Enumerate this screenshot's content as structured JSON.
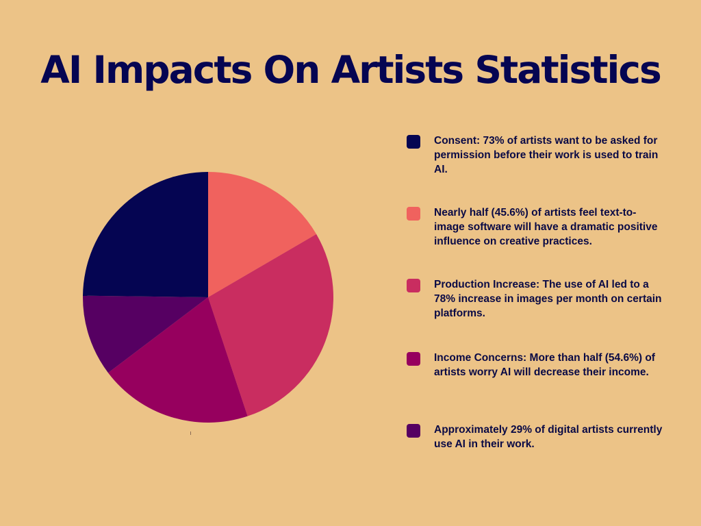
{
  "title": "AI Impacts On Artists Statistics",
  "chart_data": {
    "type": "pie",
    "title": "AI Impacts On Artists Statistics",
    "start_angle_deg": 0,
    "direction": "clockwise",
    "slices": [
      {
        "color": "#f0625e",
        "value": 16.6
      },
      {
        "color": "#c92d60",
        "value": 28.3
      },
      {
        "color": "#96005e",
        "value": 19.8
      },
      {
        "color": "#560062",
        "value": 10.5
      },
      {
        "color": "#050552",
        "value": 24.8
      }
    ],
    "legend": [
      {
        "color": "#050552",
        "text": "Consent: 73% of artists want to be asked for permission before their work is used to train AI."
      },
      {
        "color": "#f0625e",
        "text": "Nearly half (45.6%) of artists feel text-to-image software will have a dramatic positive influence on creative practices."
      },
      {
        "color": "#c92d60",
        "text": "Production Increase: The use of AI led to a 78% increase in images per month on certain platforms."
      },
      {
        "color": "#96005e",
        "text": "Income Concerns: More than half (54.6%) of artists worry AI will decrease their income."
      },
      {
        "color": "#560062",
        "text": "Approximately 29% of digital artists currently use AI in their work."
      }
    ],
    "legend_placement": "right"
  }
}
